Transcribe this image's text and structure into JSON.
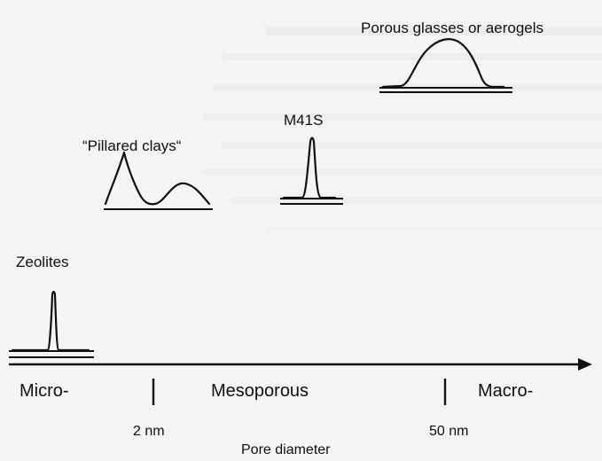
{
  "title": "",
  "groups": [
    {
      "id": "zeolites",
      "label": "Zeolites"
    },
    {
      "id": "pillared-clays",
      "label": "“Pillared clays“"
    },
    {
      "id": "m41s",
      "label": "M41S"
    },
    {
      "id": "porous-glasses",
      "label": "Porous glasses or aerogels"
    }
  ],
  "axis": {
    "label": "Pore diameter",
    "regions": [
      "Micro-",
      "Mesoporous",
      "Macro-"
    ],
    "ticks": [
      "2 nm",
      "50 nm"
    ]
  },
  "colors": {
    "ink": "#111111",
    "background": "#f4f4f2"
  }
}
